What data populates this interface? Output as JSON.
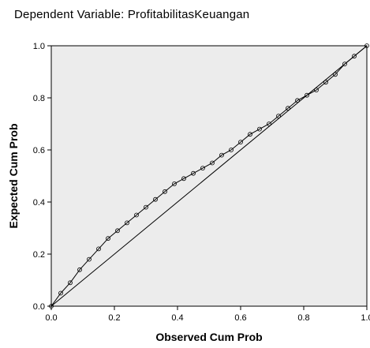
{
  "chart_data": {
    "type": "line",
    "title": "Dependent Variable: ProfitabilitasKeuangan",
    "xlabel": "Observed Cum Prob",
    "ylabel": "Expected Cum Prob",
    "xlim": [
      0,
      1
    ],
    "ylim": [
      0,
      1
    ],
    "x_ticks": [
      0.0,
      0.2,
      0.4,
      0.6,
      0.8,
      1.0
    ],
    "y_ticks": [
      0.0,
      0.2,
      0.4,
      0.6,
      0.8,
      1.0
    ],
    "x_tick_labels": [
      "0.0",
      "0.2",
      "0.4",
      "0.6",
      "0.8",
      "1.0"
    ],
    "y_tick_labels": [
      "0.0",
      "0.2",
      "0.4",
      "0.6",
      "0.8",
      "1.0"
    ],
    "grid": false,
    "background": "#ececec",
    "series": [
      {
        "x": [
          0.0,
          0.03,
          0.06,
          0.09,
          0.12,
          0.15,
          0.18,
          0.21,
          0.24,
          0.27,
          0.3,
          0.33,
          0.36,
          0.39,
          0.42,
          0.45,
          0.48,
          0.51,
          0.54,
          0.57,
          0.6,
          0.63,
          0.66,
          0.69,
          0.72,
          0.75,
          0.78,
          0.81,
          0.84,
          0.87,
          0.9,
          0.93,
          0.96,
          1.0
        ],
        "values": [
          0.0,
          0.05,
          0.09,
          0.14,
          0.18,
          0.22,
          0.26,
          0.29,
          0.32,
          0.35,
          0.38,
          0.41,
          0.44,
          0.47,
          0.49,
          0.51,
          0.53,
          0.55,
          0.58,
          0.6,
          0.63,
          0.66,
          0.68,
          0.7,
          0.73,
          0.76,
          0.79,
          0.81,
          0.83,
          0.86,
          0.89,
          0.93,
          0.96,
          1.0
        ]
      }
    ],
    "reference_line": {
      "x": [
        0,
        1
      ],
      "values": [
        0,
        1
      ]
    }
  }
}
